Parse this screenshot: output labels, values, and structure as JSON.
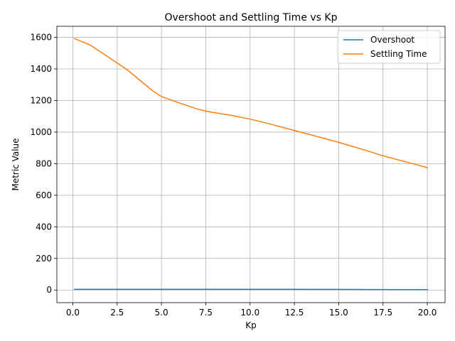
{
  "chart_data": {
    "type": "line",
    "title": "Overshoot and Settling Time vs Kp",
    "xlabel": "Kp",
    "ylabel": "Metric Value",
    "xlim": [
      -0.9,
      21.0
    ],
    "ylim": [
      -80,
      1670
    ],
    "xticks": [
      0.0,
      2.5,
      5.0,
      7.5,
      10.0,
      12.5,
      15.0,
      17.5,
      20.0
    ],
    "xtick_labels": [
      "0.0",
      "2.5",
      "5.0",
      "7.5",
      "10.0",
      "12.5",
      "15.0",
      "17.5",
      "20.0"
    ],
    "yticks": [
      0,
      200,
      400,
      600,
      800,
      1000,
      1200,
      1400,
      1600
    ],
    "ytick_labels": [
      "0",
      "200",
      "400",
      "600",
      "800",
      "1000",
      "1200",
      "1400",
      "1600"
    ],
    "grid": true,
    "legend_position": "top-right",
    "series": [
      {
        "name": "Overshoot",
        "color": "#1f77b4",
        "x": [
          0.1,
          2.5,
          5.0,
          7.5,
          10.0,
          12.5,
          15.0,
          17.5,
          20.0
        ],
        "y": [
          4,
          4,
          4,
          4.5,
          4.5,
          4,
          3.5,
          3,
          2
        ]
      },
      {
        "name": "Settling Time",
        "color": "#ff7f0e",
        "x": [
          0.1,
          1.0,
          2.0,
          3.0,
          3.5,
          4.0,
          4.5,
          5.0,
          6.0,
          7.0,
          7.5,
          8.0,
          9.0,
          10.0,
          11.0,
          12.0,
          13.0,
          14.0,
          15.0,
          16.0,
          17.0,
          17.5,
          18.0,
          19.0,
          20.0
        ],
        "y": [
          1592,
          1550,
          1475,
          1400,
          1355,
          1308,
          1262,
          1225,
          1185,
          1147,
          1133,
          1123,
          1105,
          1082,
          1055,
          1025,
          995,
          966,
          935,
          902,
          868,
          850,
          835,
          805,
          775
        ]
      }
    ]
  }
}
